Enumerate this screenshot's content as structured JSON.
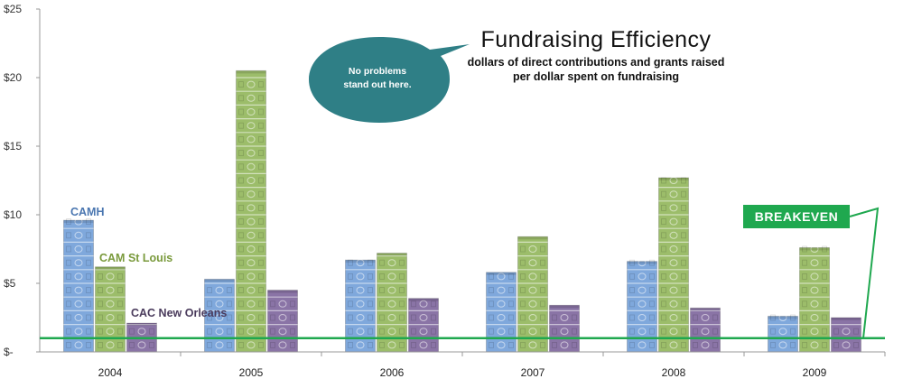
{
  "chart_data": {
    "type": "bar",
    "title": "Fundraising Efficiency",
    "subtitle_lines": [
      "dollars of direct contributions and grants raised",
      "per dollar spent on fundraising"
    ],
    "categories": [
      "2004",
      "2005",
      "2006",
      "2007",
      "2008",
      "2009"
    ],
    "series": [
      {
        "name": "CAMH",
        "color": "#7fa8dc",
        "values": [
          9.6,
          5.3,
          6.7,
          5.8,
          6.6,
          2.6
        ]
      },
      {
        "name": "CAM St Louis",
        "color": "#9cbd6a",
        "values": [
          6.2,
          20.5,
          7.2,
          8.4,
          12.7,
          7.6
        ]
      },
      {
        "name": "CAC New Orleans",
        "color": "#8a74a6",
        "values": [
          2.1,
          4.5,
          3.9,
          3.4,
          3.2,
          2.5
        ]
      }
    ],
    "ylim": [
      0,
      25
    ],
    "yticks": [
      {
        "value": 0,
        "label": "$-"
      },
      {
        "value": 5,
        "label": "$5"
      },
      {
        "value": 10,
        "label": "$10"
      },
      {
        "value": 15,
        "label": "$15"
      },
      {
        "value": 20,
        "label": "$20"
      },
      {
        "value": 25,
        "label": "$25"
      }
    ],
    "breakeven": {
      "value": 1,
      "label": "BREAKEVEN",
      "color": "#1fa84f"
    },
    "annotation": "No problems stand out here.",
    "annotation_lines": [
      "No problems",
      "stand out here."
    ],
    "series_label_colors": [
      "#4a76b0",
      "#7a9a3c",
      "#4a3b5c"
    ]
  }
}
